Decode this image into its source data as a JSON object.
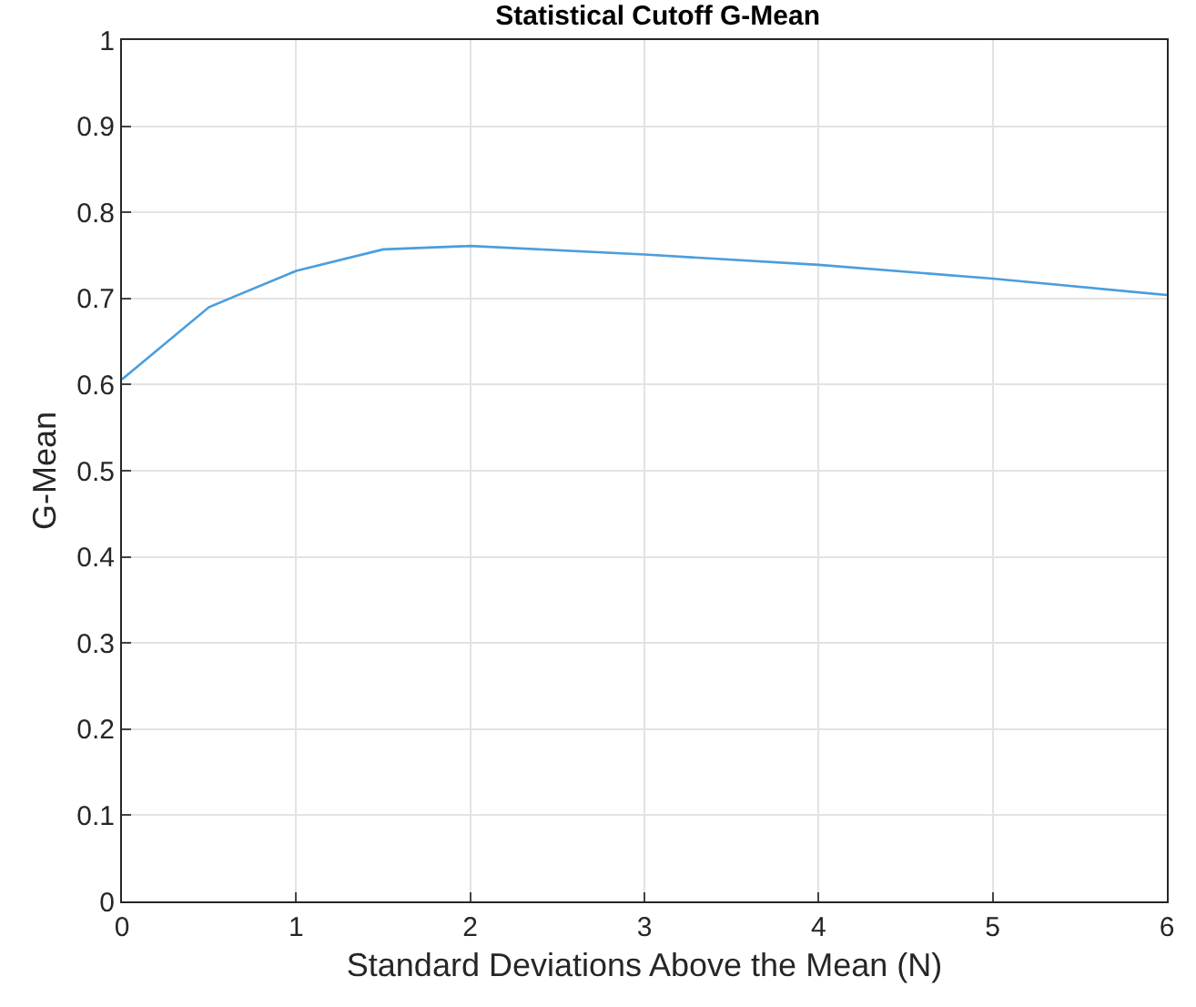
{
  "chart_data": {
    "type": "line",
    "title": "Statistical Cutoff G-Mean",
    "xlabel": "Standard Deviations Above the Mean (N)",
    "ylabel": "G-Mean",
    "x": [
      0,
      0.5,
      1,
      1.5,
      2,
      3,
      4,
      5,
      6
    ],
    "series": [
      {
        "color": "#4a9ede",
        "values": [
          0.606,
          0.69,
          0.732,
          0.757,
          0.761,
          0.751,
          0.739,
          0.723,
          0.704
        ]
      }
    ],
    "xlim": [
      0,
      6
    ],
    "xticks": [
      0,
      1,
      2,
      3,
      4,
      5,
      6
    ],
    "ylim": [
      0,
      1
    ],
    "yticks": [
      0,
      0.1,
      0.2,
      0.3,
      0.4,
      0.5,
      0.6,
      0.7,
      0.8,
      0.9,
      1
    ],
    "grid": true,
    "legend": false,
    "marker": "none",
    "line_style": "solid"
  }
}
